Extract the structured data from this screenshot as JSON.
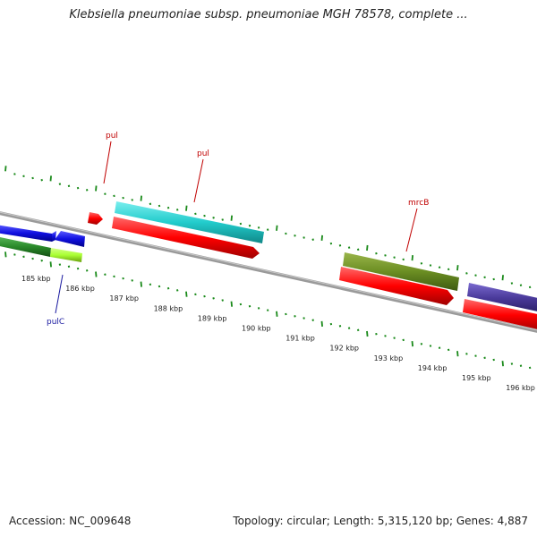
{
  "title": "Klebsiella pneumoniae subsp. pneumoniae MGH 78578, complete ...",
  "footer": {
    "accession": "Accession: NC_009648",
    "topology": "Topology: circular; Length: 5,315,120 bp; Genes: 4,887"
  },
  "scale_labels": [
    "185 kbp",
    "186 kbp",
    "187 kbp",
    "188 kbp",
    "189 kbp",
    "190 kbp",
    "191 kbp",
    "192 kbp",
    "193 kbp",
    "194 kbp",
    "195 kbp",
    "196 kbp"
  ],
  "genes": [
    {
      "id": "blue-gene-1",
      "color": "#1010e0",
      "strand": "reverse",
      "track": "inner"
    },
    {
      "id": "blue-gene-2",
      "color": "#1010e0",
      "strand": "reverse",
      "track": "inner"
    },
    {
      "id": "green-gene-1",
      "color": "#2a8a2a",
      "strand": "forward",
      "track": "inner-2"
    },
    {
      "id": "pulC",
      "label": "pulC",
      "color": "#aaff33",
      "label_color": "#1a1aa0",
      "strand": "forward",
      "track": "inner-2"
    },
    {
      "id": "red-gene-small",
      "color": "#ff0000",
      "strand": "forward",
      "track": "outer"
    },
    {
      "id": "pul-red",
      "label": "pul",
      "color": "#ff0000",
      "label_color": "#c00000",
      "strand": "forward",
      "track": "outer-2"
    },
    {
      "id": "pul-cyan",
      "label": "pul",
      "color": "#22cccc",
      "label_color": "#c00000",
      "strand": "forward",
      "track": "outer"
    },
    {
      "id": "mrcB-olive",
      "label": "mrcB",
      "color": "#6b8e23",
      "label_color": "#c00000",
      "strand": "forward",
      "track": "outer"
    },
    {
      "id": "red-gene-2",
      "color": "#ff0000",
      "strand": "forward",
      "track": "outer-2"
    },
    {
      "id": "purple-gene",
      "color": "#4a3a9a",
      "strand": "forward",
      "track": "outer"
    },
    {
      "id": "red-gene-3",
      "color": "#ff0000",
      "strand": "forward",
      "track": "outer-2"
    }
  ],
  "colors": {
    "backbone": "#8a8a8a",
    "ticks": "#1a8a1a"
  }
}
